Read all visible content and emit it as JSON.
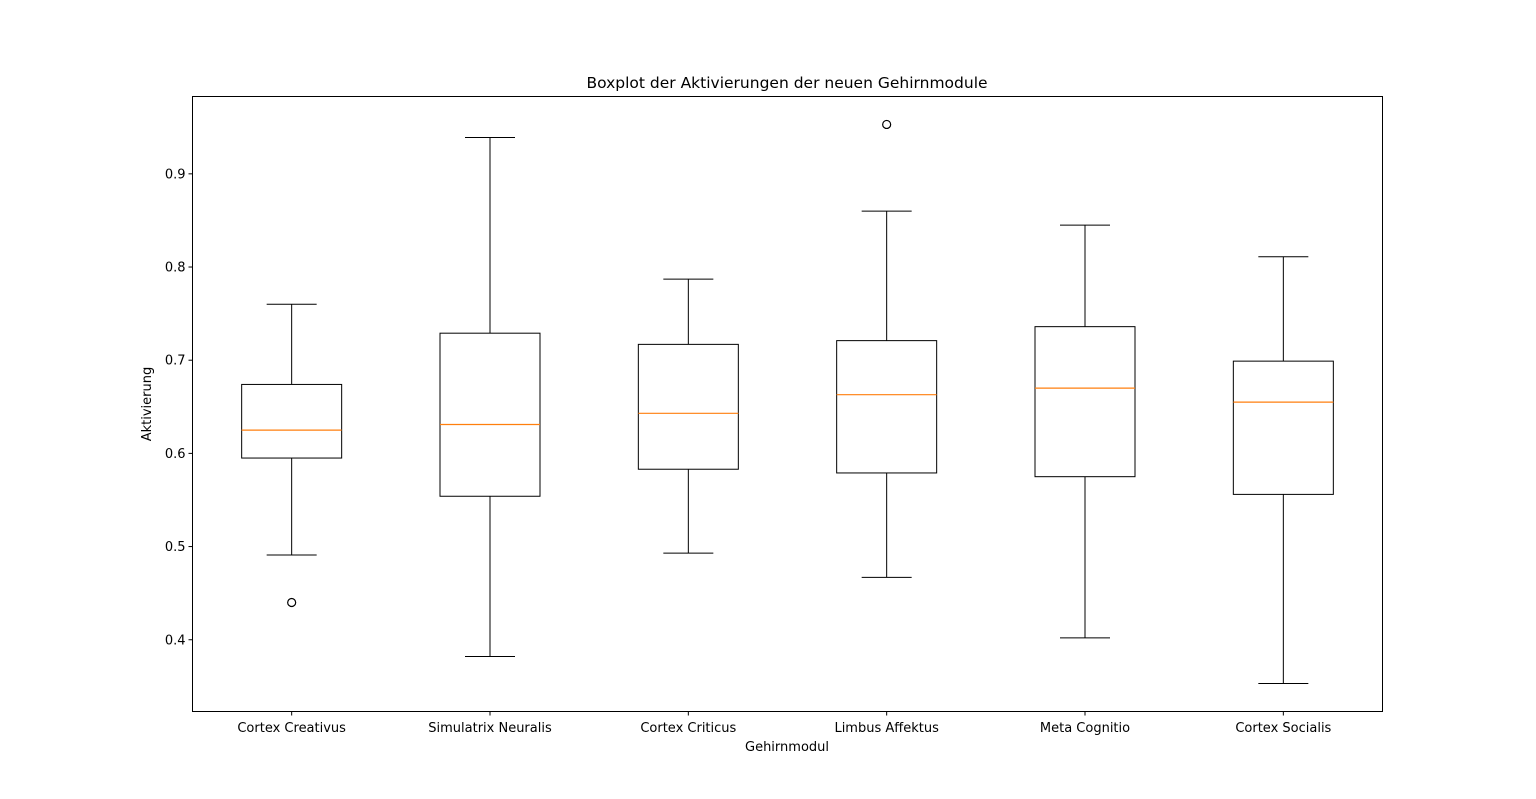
{
  "chart_data": {
    "type": "boxplot",
    "title": "Boxplot der Aktivierungen der neuen Gehirnmodule",
    "xlabel": "Gehirnmodul",
    "ylabel": "Aktivierung",
    "ylim": [
      0.323,
      0.983
    ],
    "yticks": [
      0.4,
      0.5,
      0.6,
      0.7,
      0.8,
      0.9
    ],
    "yticklabels": [
      "0.4",
      "0.5",
      "0.6",
      "0.7",
      "0.8",
      "0.9"
    ],
    "grid": false,
    "categories": [
      "Cortex Creativus",
      "Simulatrix Neuralis",
      "Cortex Criticus",
      "Limbus Affektus",
      "Meta Cognitio",
      "Cortex Socialis"
    ],
    "boxes": [
      {
        "whisker_low": 0.491,
        "q1": 0.595,
        "median": 0.625,
        "q3": 0.674,
        "whisker_high": 0.76,
        "outliers": [
          0.44
        ]
      },
      {
        "whisker_low": 0.382,
        "q1": 0.554,
        "median": 0.631,
        "q3": 0.729,
        "whisker_high": 0.939,
        "outliers": []
      },
      {
        "whisker_low": 0.493,
        "q1": 0.583,
        "median": 0.643,
        "q3": 0.717,
        "whisker_high": 0.787,
        "outliers": []
      },
      {
        "whisker_low": 0.467,
        "q1": 0.579,
        "median": 0.663,
        "q3": 0.721,
        "whisker_high": 0.86,
        "outliers": [
          0.953
        ]
      },
      {
        "whisker_low": 0.402,
        "q1": 0.575,
        "median": 0.67,
        "q3": 0.736,
        "whisker_high": 0.845,
        "outliers": []
      },
      {
        "whisker_low": 0.353,
        "q1": 0.556,
        "median": 0.655,
        "q3": 0.699,
        "whisker_high": 0.811,
        "outliers": []
      }
    ],
    "colors": {
      "box": "#000000",
      "median": "#ff7f0e",
      "background": "#ffffff"
    }
  }
}
